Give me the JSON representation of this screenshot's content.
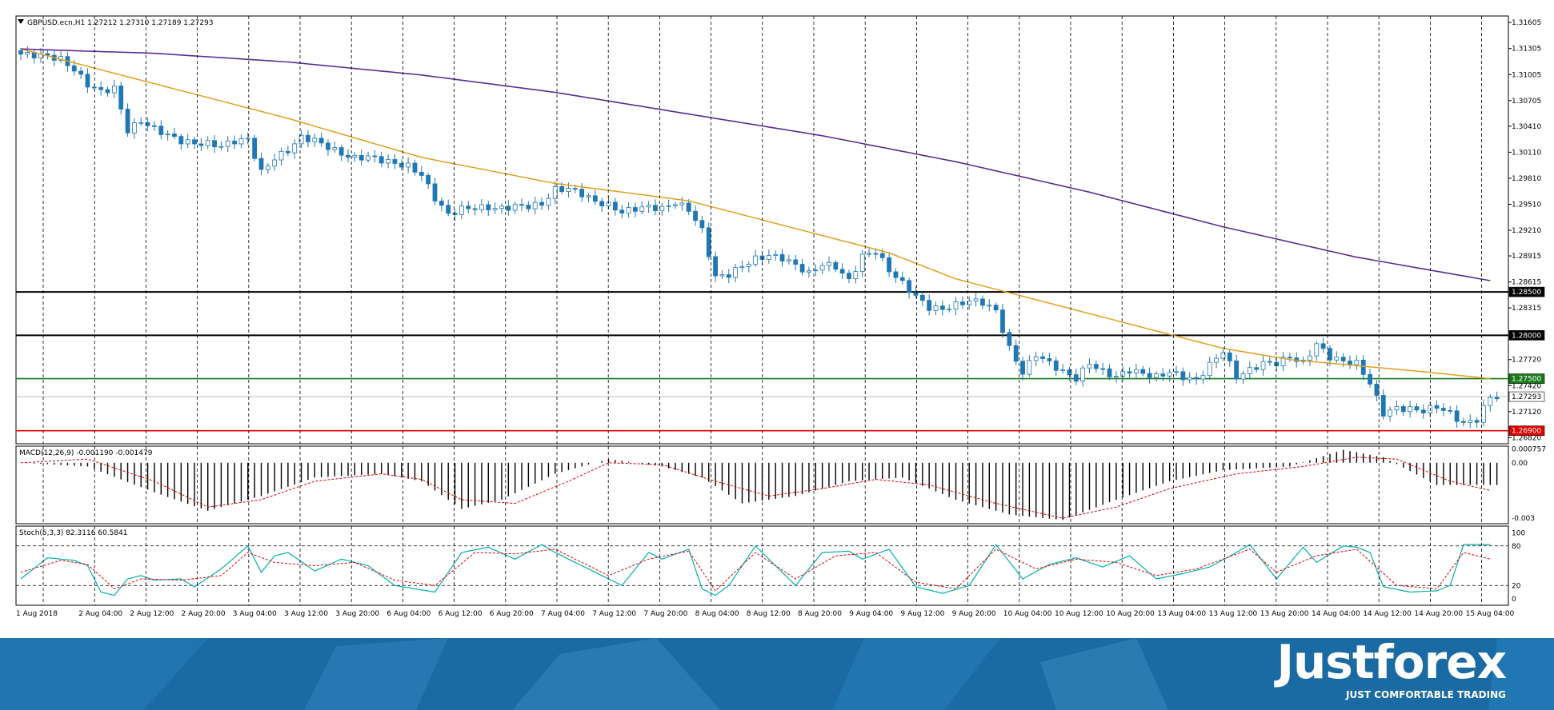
{
  "colors": {
    "bull": "#ffffff",
    "bear": "#1f78b4",
    "edge": "#1f78b4",
    "ma_fast": "#e0a020",
    "ma_slow": "#5a2d91",
    "signal": "#e00000",
    "hist": "#000000",
    "stoch_main": "#00b0b0",
    "stoch_signal": "#e00000",
    "level_black": "#000000",
    "level_green": "#1a7a1a",
    "level_red": "#e00000"
  },
  "branding": {
    "logo": "Justforex",
    "slogan": "JUST COMFORTABLE TRADING"
  },
  "chart_data": [
    {
      "type": "candlestick",
      "title": "GBPUSD.ecn,H1  1.27212 1.27310 1.27189 1.27293",
      "yticks": [
        "1.31605",
        "1.31305",
        "1.31005",
        "1.30705",
        "1.30410",
        "1.30110",
        "1.29810",
        "1.29510",
        "1.29210",
        "1.28915",
        "1.28615",
        "1.28315",
        "1.27720",
        "1.27420",
        "1.27120",
        "1.26820"
      ],
      "ylim": [
        1.2675,
        1.3168
      ],
      "ytick_values": [
        1.31605,
        1.31305,
        1.31005,
        1.30705,
        1.3041,
        1.3011,
        1.2981,
        1.2951,
        1.2921,
        1.28915,
        1.28615,
        1.28315,
        1.2772,
        1.2742,
        1.2712,
        1.2682
      ],
      "price_marks": [
        {
          "value": 1.285,
          "label": "1.28500",
          "color": "#000000"
        },
        {
          "value": 1.28,
          "label": "1.28000",
          "color": "#000000"
        },
        {
          "value": 1.275,
          "label": "1.27500",
          "color": "#1a7a1a"
        },
        {
          "value": 1.27293,
          "label": "1.27293",
          "color": "#ffffff"
        },
        {
          "value": 1.269,
          "label": "1.26900",
          "color": "#e00000"
        }
      ],
      "horizontal_levels": [
        1.285,
        1.28,
        1.275,
        1.269
      ],
      "current_price": 1.27293,
      "xlabels": [
        "1 Aug 2018",
        "2 Aug 04:00",
        "2 Aug 12:00",
        "2 Aug 20:00",
        "3 Aug 04:00",
        "3 Aug 12:00",
        "3 Aug 20:00",
        "6 Aug 04:00",
        "6 Aug 12:00",
        "6 Aug 20:00",
        "7 Aug 04:00",
        "7 Aug 12:00",
        "7 Aug 20:00",
        "8 Aug 04:00",
        "8 Aug 12:00",
        "8 Aug 20:00",
        "9 Aug 04:00",
        "9 Aug 12:00",
        "9 Aug 20:00",
        "10 Aug 04:00",
        "10 Aug 12:00",
        "10 Aug 20:00",
        "13 Aug 04:00",
        "13 Aug 12:00",
        "13 Aug 20:00",
        "14 Aug 04:00",
        "14 Aug 12:00",
        "14 Aug 20:00",
        "15 Aug 04:00"
      ],
      "close_path": [
        [
          0,
          1.3124
        ],
        [
          4,
          1.3122
        ],
        [
          6,
          1.3118
        ],
        [
          8,
          1.3106
        ],
        [
          10,
          1.3089
        ],
        [
          12,
          1.3081
        ],
        [
          14,
          1.3085
        ],
        [
          16,
          1.3036
        ],
        [
          18,
          1.3047
        ],
        [
          20,
          1.3038
        ],
        [
          22,
          1.3031
        ],
        [
          24,
          1.3024
        ],
        [
          26,
          1.3021
        ],
        [
          28,
          1.3021
        ],
        [
          30,
          1.3018
        ],
        [
          32,
          1.3024
        ],
        [
          34,
          1.3026
        ],
        [
          36,
          1.2988
        ],
        [
          38,
          1.3004
        ],
        [
          40,
          1.3013
        ],
        [
          42,
          1.3028
        ],
        [
          44,
          1.3025
        ],
        [
          46,
          1.3017
        ],
        [
          48,
          1.3009
        ],
        [
          50,
          1.3004
        ],
        [
          52,
          1.3006
        ],
        [
          54,
          1.3002
        ],
        [
          56,
          1.2998
        ],
        [
          58,
          1.2995
        ],
        [
          60,
          1.2985
        ],
        [
          62,
          1.2958
        ],
        [
          64,
          1.2939
        ],
        [
          66,
          1.2946
        ],
        [
          68,
          1.2947
        ],
        [
          70,
          1.2947
        ],
        [
          72,
          1.2946
        ],
        [
          74,
          1.2949
        ],
        [
          76,
          1.2949
        ],
        [
          78,
          1.2951
        ],
        [
          80,
          1.2968
        ],
        [
          82,
          1.2969
        ],
        [
          84,
          1.2963
        ],
        [
          86,
          1.2954
        ],
        [
          88,
          1.295
        ],
        [
          90,
          1.2942
        ],
        [
          92,
          1.2946
        ],
        [
          94,
          1.2948
        ],
        [
          96,
          1.2946
        ],
        [
          98,
          1.2953
        ],
        [
          100,
          1.2945
        ],
        [
          102,
          1.2921
        ],
        [
          104,
          1.2867
        ],
        [
          106,
          1.287
        ],
        [
          108,
          1.288
        ],
        [
          110,
          1.2888
        ],
        [
          112,
          1.2892
        ],
        [
          114,
          1.2889
        ],
        [
          116,
          1.2881
        ],
        [
          118,
          1.2871
        ],
        [
          120,
          1.2882
        ],
        [
          122,
          1.2879
        ],
        [
          124,
          1.2863
        ],
        [
          126,
          1.2891
        ],
        [
          128,
          1.2897
        ],
        [
          130,
          1.2875
        ],
        [
          132,
          1.286
        ],
        [
          134,
          1.2845
        ],
        [
          136,
          1.2832
        ],
        [
          138,
          1.283
        ],
        [
          140,
          1.2835
        ],
        [
          142,
          1.284
        ],
        [
          144,
          1.2838
        ],
        [
          146,
          1.2828
        ],
        [
          148,
          1.2785
        ],
        [
          150,
          1.2757
        ],
        [
          152,
          1.2778
        ],
        [
          154,
          1.2768
        ],
        [
          156,
          1.2758
        ],
        [
          158,
          1.275
        ],
        [
          160,
          1.2768
        ],
        [
          162,
          1.2758
        ],
        [
          164,
          1.2752
        ],
        [
          166,
          1.276
        ],
        [
          168,
          1.2756
        ],
        [
          170,
          1.2752
        ],
        [
          172,
          1.2758
        ],
        [
          174,
          1.2752
        ],
        [
          176,
          1.2748
        ],
        [
          178,
          1.2766
        ],
        [
          180,
          1.2782
        ],
        [
          182,
          1.2752
        ],
        [
          184,
          1.276
        ],
        [
          186,
          1.2768
        ],
        [
          188,
          1.2768
        ],
        [
          190,
          1.2775
        ],
        [
          192,
          1.2768
        ],
        [
          194,
          1.279
        ],
        [
          196,
          1.2775
        ],
        [
          198,
          1.277
        ],
        [
          200,
          1.2768
        ],
        [
          202,
          1.2745
        ],
        [
          204,
          1.271
        ],
        [
          206,
          1.2716
        ],
        [
          208,
          1.2715
        ],
        [
          210,
          1.2713
        ],
        [
          212,
          1.2718
        ],
        [
          214,
          1.271
        ],
        [
          216,
          1.2698
        ],
        [
          218,
          1.2703
        ],
        [
          220,
          1.2729
        ]
      ],
      "candle_count": 222,
      "ma_fast_path": [
        [
          0,
          1.313
        ],
        [
          20,
          1.309
        ],
        [
          40,
          1.305
        ],
        [
          60,
          1.3005
        ],
        [
          80,
          1.2975
        ],
        [
          100,
          1.2955
        ],
        [
          110,
          1.2935
        ],
        [
          120,
          1.2915
        ],
        [
          130,
          1.2895
        ],
        [
          140,
          1.2865
        ],
        [
          150,
          1.2845
        ],
        [
          160,
          1.2825
        ],
        [
          170,
          1.2805
        ],
        [
          180,
          1.2785
        ],
        [
          190,
          1.2772
        ],
        [
          200,
          1.2765
        ],
        [
          210,
          1.2758
        ],
        [
          220,
          1.275
        ]
      ],
      "ma_slow_path": [
        [
          0,
          1.313
        ],
        [
          20,
          1.3125
        ],
        [
          40,
          1.3115
        ],
        [
          60,
          1.31
        ],
        [
          80,
          1.308
        ],
        [
          100,
          1.3055
        ],
        [
          120,
          1.303
        ],
        [
          140,
          1.3
        ],
        [
          160,
          1.2965
        ],
        [
          180,
          1.2925
        ],
        [
          200,
          1.289
        ],
        [
          220,
          1.2863
        ]
      ],
      "x_range": [
        0,
        222
      ]
    },
    {
      "type": "bar",
      "title": "MACD(12,26,9) -0.001190 -0.001479",
      "yticks": [
        "0.000757",
        "0.00",
        "-0.003"
      ],
      "ytick_values": [
        0.000757,
        0,
        -0.003
      ],
      "ylim": [
        -0.0033,
        0.0009
      ],
      "hist_path": [
        [
          0,
          0.0
        ],
        [
          10,
          -0.0002
        ],
        [
          20,
          -0.0016
        ],
        [
          28,
          -0.0026
        ],
        [
          36,
          -0.0018
        ],
        [
          44,
          -0.0008
        ],
        [
          54,
          -0.0006
        ],
        [
          60,
          -0.001
        ],
        [
          66,
          -0.0025
        ],
        [
          72,
          -0.002
        ],
        [
          80,
          -0.0006
        ],
        [
          88,
          0.0002
        ],
        [
          96,
          -0.0002
        ],
        [
          102,
          -0.0008
        ],
        [
          108,
          -0.0022
        ],
        [
          116,
          -0.0018
        ],
        [
          124,
          -0.001
        ],
        [
          132,
          -0.0008
        ],
        [
          140,
          -0.002
        ],
        [
          148,
          -0.0028
        ],
        [
          156,
          -0.0031
        ],
        [
          164,
          -0.002
        ],
        [
          172,
          -0.001
        ],
        [
          180,
          -0.0004
        ],
        [
          190,
          -0.0002
        ],
        [
          198,
          0.0007
        ],
        [
          204,
          0.0003
        ],
        [
          212,
          -0.0012
        ],
        [
          220,
          -0.0012
        ]
      ],
      "signal_path": [
        [
          0,
          0.0
        ],
        [
          10,
          0.0002
        ],
        [
          20,
          -0.001
        ],
        [
          28,
          -0.0024
        ],
        [
          36,
          -0.002
        ],
        [
          44,
          -0.001
        ],
        [
          54,
          -0.0006
        ],
        [
          60,
          -0.0009
        ],
        [
          66,
          -0.002
        ],
        [
          74,
          -0.0022
        ],
        [
          82,
          -0.001
        ],
        [
          88,
          0.0
        ],
        [
          96,
          -0.0001
        ],
        [
          104,
          -0.001
        ],
        [
          112,
          -0.0018
        ],
        [
          120,
          -0.0014
        ],
        [
          128,
          -0.0009
        ],
        [
          136,
          -0.0012
        ],
        [
          146,
          -0.0022
        ],
        [
          156,
          -0.003
        ],
        [
          164,
          -0.0024
        ],
        [
          172,
          -0.0014
        ],
        [
          182,
          -0.0006
        ],
        [
          192,
          -0.0002
        ],
        [
          200,
          0.0003
        ],
        [
          206,
          0.0002
        ],
        [
          214,
          -0.001
        ],
        [
          220,
          -0.0015
        ]
      ]
    },
    {
      "type": "line",
      "title": "Stoch(5,3,3) 82.3116 60.5841",
      "yticks": [
        "100",
        "80",
        "20",
        "0"
      ],
      "ytick_values": [
        100,
        80,
        20,
        0
      ],
      "ylim": [
        0,
        100
      ],
      "levels": [
        80,
        20
      ],
      "main_path": [
        [
          0,
          30
        ],
        [
          4,
          62
        ],
        [
          8,
          58
        ],
        [
          10,
          50
        ],
        [
          12,
          10
        ],
        [
          14,
          5
        ],
        [
          16,
          30
        ],
        [
          18,
          35
        ],
        [
          20,
          28
        ],
        [
          24,
          30
        ],
        [
          26,
          18
        ],
        [
          30,
          45
        ],
        [
          34,
          80
        ],
        [
          36,
          40
        ],
        [
          38,
          65
        ],
        [
          40,
          70
        ],
        [
          44,
          42
        ],
        [
          48,
          60
        ],
        [
          52,
          50
        ],
        [
          56,
          20
        ],
        [
          62,
          10
        ],
        [
          66,
          70
        ],
        [
          70,
          78
        ],
        [
          74,
          60
        ],
        [
          78,
          82
        ],
        [
          80,
          70
        ],
        [
          86,
          40
        ],
        [
          90,
          20
        ],
        [
          94,
          70
        ],
        [
          96,
          60
        ],
        [
          100,
          75
        ],
        [
          102,
          15
        ],
        [
          104,
          5
        ],
        [
          106,
          20
        ],
        [
          110,
          80
        ],
        [
          112,
          60
        ],
        [
          116,
          20
        ],
        [
          120,
          70
        ],
        [
          124,
          72
        ],
        [
          126,
          60
        ],
        [
          130,
          75
        ],
        [
          134,
          18
        ],
        [
          138,
          8
        ],
        [
          142,
          20
        ],
        [
          146,
          82
        ],
        [
          150,
          30
        ],
        [
          154,
          52
        ],
        [
          158,
          62
        ],
        [
          162,
          48
        ],
        [
          166,
          65
        ],
        [
          170,
          30
        ],
        [
          174,
          38
        ],
        [
          178,
          48
        ],
        [
          182,
          70
        ],
        [
          184,
          82
        ],
        [
          188,
          30
        ],
        [
          192,
          78
        ],
        [
          194,
          55
        ],
        [
          198,
          80
        ],
        [
          200,
          78
        ],
        [
          202,
          70
        ],
        [
          204,
          18
        ],
        [
          208,
          10
        ],
        [
          212,
          12
        ],
        [
          214,
          20
        ],
        [
          216,
          82
        ],
        [
          220,
          82
        ]
      ],
      "signal_path": [
        [
          0,
          40
        ],
        [
          6,
          58
        ],
        [
          10,
          52
        ],
        [
          14,
          15
        ],
        [
          18,
          30
        ],
        [
          24,
          28
        ],
        [
          30,
          35
        ],
        [
          34,
          70
        ],
        [
          38,
          55
        ],
        [
          44,
          50
        ],
        [
          50,
          55
        ],
        [
          56,
          28
        ],
        [
          62,
          20
        ],
        [
          68,
          70
        ],
        [
          74,
          68
        ],
        [
          80,
          75
        ],
        [
          88,
          35
        ],
        [
          94,
          60
        ],
        [
          100,
          72
        ],
        [
          104,
          12
        ],
        [
          110,
          70
        ],
        [
          116,
          30
        ],
        [
          122,
          65
        ],
        [
          128,
          70
        ],
        [
          134,
          25
        ],
        [
          140,
          15
        ],
        [
          146,
          75
        ],
        [
          152,
          45
        ],
        [
          158,
          60
        ],
        [
          164,
          55
        ],
        [
          170,
          35
        ],
        [
          176,
          45
        ],
        [
          184,
          75
        ],
        [
          188,
          40
        ],
        [
          194,
          65
        ],
        [
          200,
          75
        ],
        [
          206,
          20
        ],
        [
          212,
          15
        ],
        [
          216,
          70
        ],
        [
          220,
          60
        ]
      ]
    }
  ]
}
